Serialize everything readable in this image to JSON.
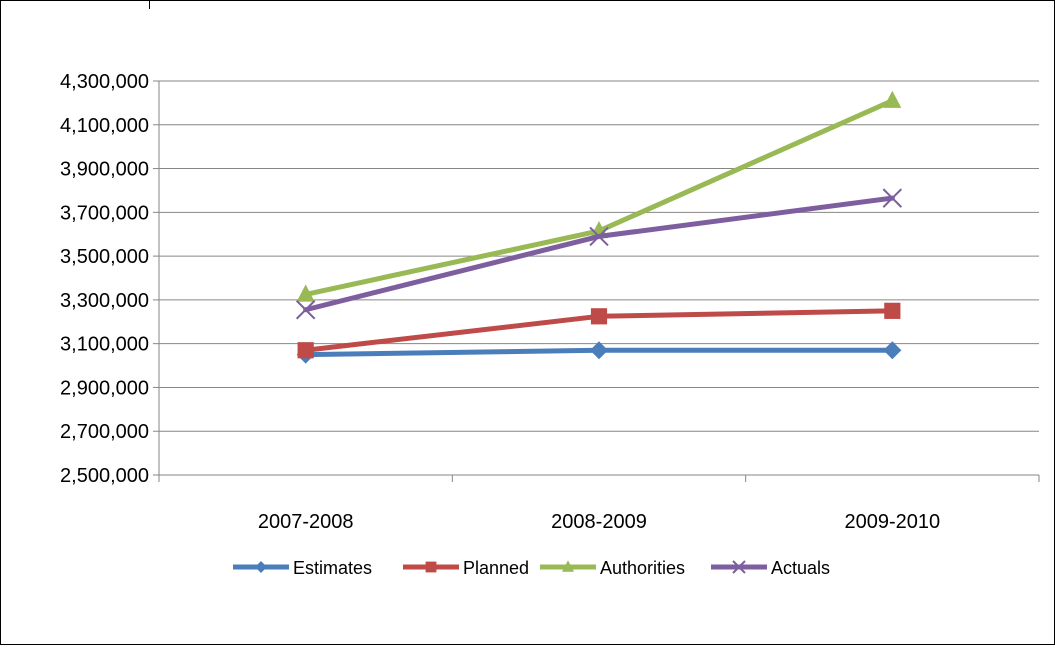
{
  "chart_data": {
    "type": "line",
    "title": "",
    "xlabel": "",
    "ylabel": "",
    "categories": [
      "2007-2008",
      "2008-2009",
      "2009-2010"
    ],
    "ylim": [
      2500000,
      4300000
    ],
    "yticks": [
      2500000,
      2700000,
      2900000,
      3100000,
      3300000,
      3500000,
      3700000,
      3900000,
      4100000,
      4300000
    ],
    "grid": true,
    "legend": "bottom",
    "series": [
      {
        "name": "Estimates",
        "values": [
          3050000,
          3070000,
          3070000
        ],
        "color": "#4a7ebb",
        "marker": "diamond"
      },
      {
        "name": "Planned",
        "values": [
          3070000,
          3225000,
          3250000
        ],
        "color": "#be4b48",
        "marker": "square"
      },
      {
        "name": "Authorities",
        "values": [
          3325000,
          3615000,
          4210000
        ],
        "color": "#98b954",
        "marker": "triangle"
      },
      {
        "name": "Actuals",
        "values": [
          3255000,
          3590000,
          3765000
        ],
        "color": "#7d5fa0",
        "marker": "x"
      }
    ]
  }
}
